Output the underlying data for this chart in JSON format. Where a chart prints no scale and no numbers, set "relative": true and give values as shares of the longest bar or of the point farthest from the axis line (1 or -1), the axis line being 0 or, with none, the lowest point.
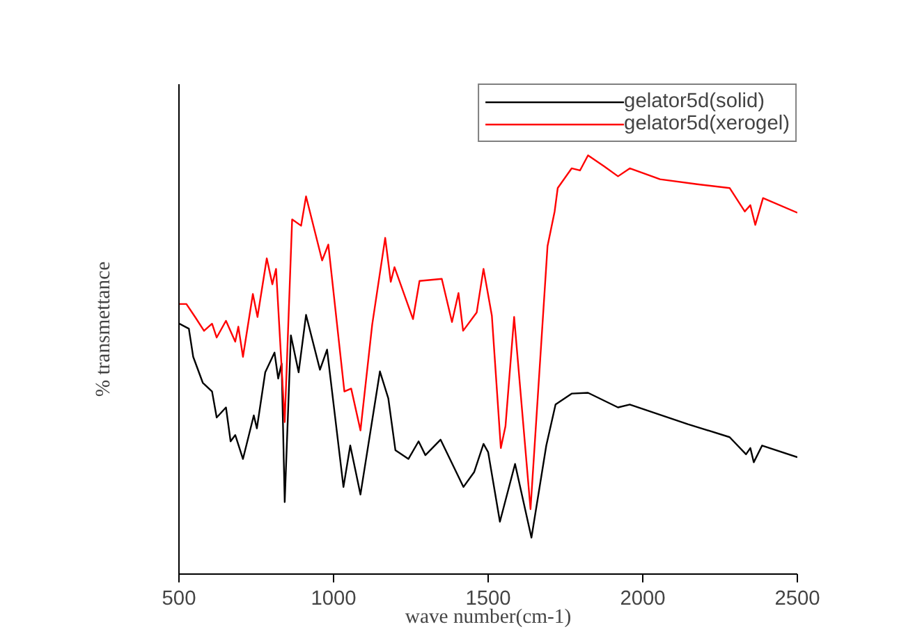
{
  "chart_data": {
    "type": "line",
    "relative": true,
    "xlabel": "wave number(cm-1)",
    "ylabel": "% transmettance",
    "xlim": [
      500,
      2500
    ],
    "xticks": [
      500,
      1000,
      1500,
      2000,
      2500
    ],
    "legend": "top right",
    "grid": false,
    "series": [
      {
        "name": "gelator5d(solid)",
        "color": "#000000",
        "x": [
          501,
          532,
          546,
          577,
          607,
          622,
          652,
          667,
          682,
          707,
          742,
          752,
          779,
          809,
          821,
          832,
          842,
          862,
          887,
          911,
          956,
          979,
          1032,
          1054,
          1087,
          1150,
          1177,
          1200,
          1242,
          1275,
          1297,
          1346,
          1420,
          1455,
          1485,
          1500,
          1538,
          1587,
          1640,
          1688,
          1718,
          1770,
          1823,
          1920,
          1958,
          2146,
          2281,
          2334,
          2348,
          2359,
          2386,
          2500
        ],
        "values": [
          0.598,
          0.586,
          0.519,
          0.457,
          0.436,
          0.374,
          0.398,
          0.317,
          0.332,
          0.275,
          0.379,
          0.348,
          0.482,
          0.529,
          0.467,
          0.503,
          0.172,
          0.57,
          0.482,
          0.619,
          0.488,
          0.536,
          0.208,
          0.307,
          0.19,
          0.484,
          0.42,
          0.296,
          0.275,
          0.317,
          0.284,
          0.321,
          0.208,
          0.244,
          0.311,
          0.291,
          0.125,
          0.263,
          0.087,
          0.307,
          0.405,
          0.431,
          0.433,
          0.398,
          0.405,
          0.358,
          0.327,
          0.286,
          0.301,
          0.267,
          0.307,
          0.279
        ]
      },
      {
        "name": "gelator5d(xerogel)",
        "color": "#ff0000",
        "x": [
          501,
          524,
          554,
          581,
          607,
          622,
          652,
          682,
          692,
          707,
          739,
          754,
          784,
          802,
          814,
          842,
          866,
          895,
          911,
          963,
          983,
          1035,
          1057,
          1087,
          1125,
          1167,
          1185,
          1197,
          1257,
          1278,
          1350,
          1383,
          1404,
          1419,
          1463,
          1485,
          1512,
          1541,
          1556,
          1584,
          1637,
          1692,
          1715,
          1725,
          1770,
          1797,
          1823,
          1875,
          1920,
          1958,
          2056,
          2176,
          2281,
          2330,
          2348,
          2364,
          2389,
          2500
        ],
        "values": [
          0.645,
          0.645,
          0.612,
          0.581,
          0.598,
          0.565,
          0.605,
          0.555,
          0.591,
          0.519,
          0.669,
          0.614,
          0.754,
          0.692,
          0.729,
          0.363,
          0.847,
          0.832,
          0.902,
          0.749,
          0.787,
          0.436,
          0.443,
          0.343,
          0.596,
          0.803,
          0.698,
          0.733,
          0.609,
          0.7,
          0.705,
          0.602,
          0.671,
          0.581,
          0.625,
          0.729,
          0.617,
          0.301,
          0.353,
          0.614,
          0.155,
          0.783,
          0.866,
          0.922,
          0.969,
          0.964,
          1.0,
          0.974,
          0.95,
          0.969,
          0.943,
          0.931,
          0.922,
          0.866,
          0.881,
          0.834,
          0.898,
          0.863
        ]
      }
    ]
  }
}
